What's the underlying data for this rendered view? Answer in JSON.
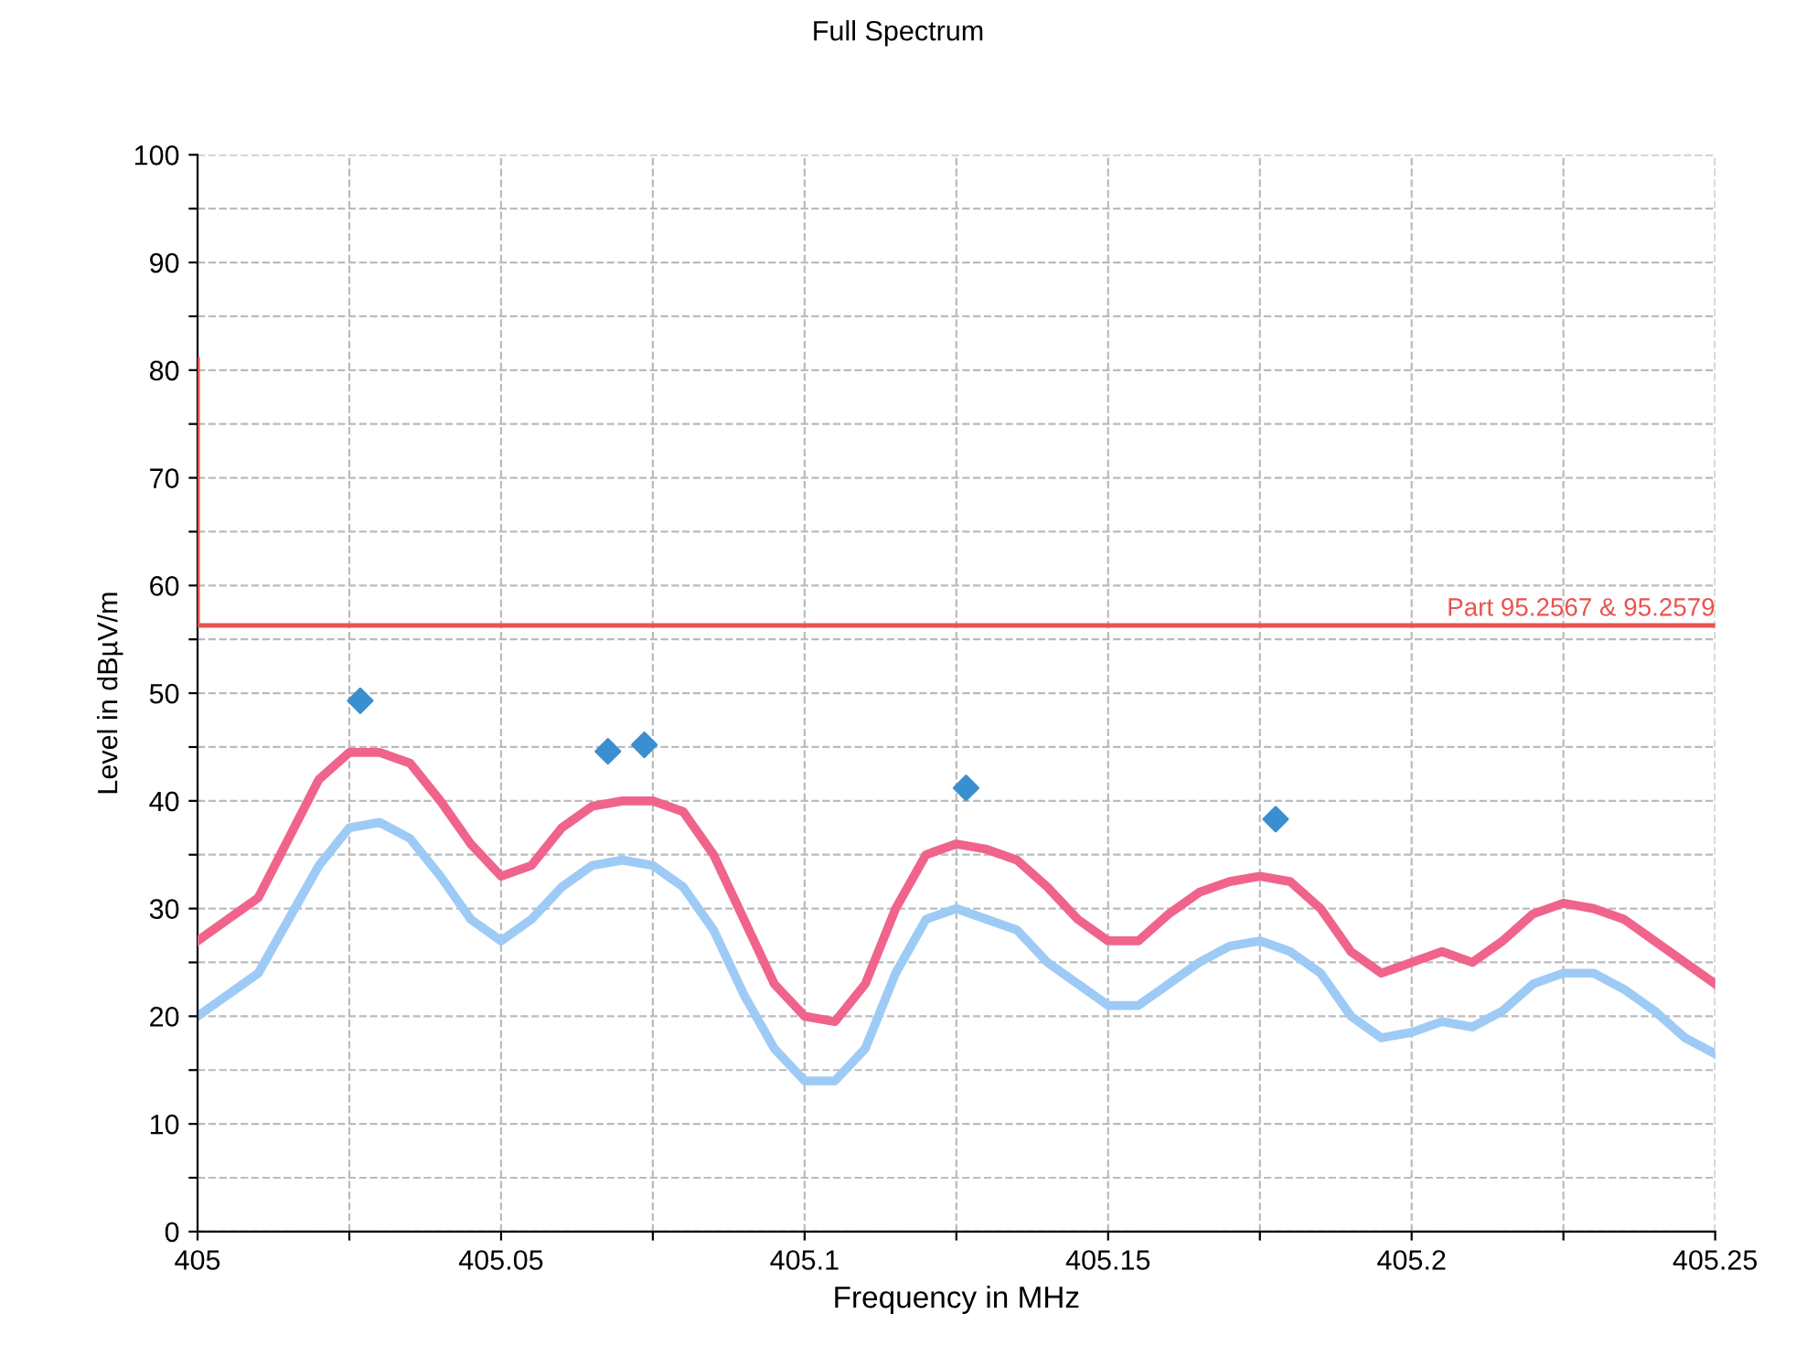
{
  "chart_data": {
    "type": "line",
    "title": "Full Spectrum",
    "xlabel": "Frequency in MHz",
    "ylabel": "Level in dBµV/m",
    "xlim": [
      405,
      405.25
    ],
    "ylim": [
      0,
      100
    ],
    "xticks": [
      405,
      {
        "value": 405.025,
        "label": null
      },
      405.05,
      {
        "value": 405.075,
        "label": null
      },
      405.1,
      {
        "value": 405.125,
        "label": null
      },
      405.15,
      {
        "value": 405.175,
        "label": null
      },
      405.2,
      {
        "value": 405.225,
        "label": null
      },
      405.25
    ],
    "yticks": [
      0,
      {
        "value": 5,
        "label": null
      },
      10,
      {
        "value": 15,
        "label": null
      },
      20,
      {
        "value": 25,
        "label": null
      },
      30,
      {
        "value": 35,
        "label": null
      },
      40,
      {
        "value": 45,
        "label": null
      },
      50,
      {
        "value": 55,
        "label": null
      },
      60,
      {
        "value": 65,
        "label": null
      },
      70,
      {
        "value": 75,
        "label": null
      },
      80,
      {
        "value": 85,
        "label": null
      },
      90,
      {
        "value": 95,
        "label": null
      },
      100
    ],
    "grid": true,
    "line_style": "solid",
    "x": [
      405,
      405.01,
      405.02,
      405.025,
      405.03,
      405.035,
      405.04,
      405.045,
      405.05,
      405.055,
      405.06,
      405.065,
      405.07,
      405.075,
      405.08,
      405.085,
      405.09,
      405.095,
      405.1,
      405.105,
      405.11,
      405.115,
      405.12,
      405.125,
      405.13,
      405.135,
      405.14,
      405.145,
      405.15,
      405.155,
      405.16,
      405.165,
      405.17,
      405.175,
      405.18,
      405.185,
      405.19,
      405.195,
      405.2,
      405.205,
      405.21,
      405.215,
      405.22,
      405.225,
      405.23,
      405.235,
      405.24,
      405.245,
      405.25
    ],
    "series": [
      {
        "color": "#9ecbf5",
        "values": [
          20,
          24,
          34,
          37.5,
          38,
          36.5,
          33,
          29,
          27,
          29,
          32,
          34,
          34.5,
          34,
          32,
          28,
          22,
          17,
          14,
          14,
          17,
          24,
          29,
          30,
          29,
          28,
          25,
          23,
          21,
          21,
          23,
          25,
          26.5,
          27,
          26,
          24,
          20,
          18,
          18.5,
          19.5,
          19,
          20.5,
          23,
          24,
          24,
          22.5,
          20.5,
          18,
          16.5
        ]
      },
      {
        "color": "#f0648c",
        "values": [
          27,
          31,
          42,
          44.5,
          44.5,
          43.5,
          40,
          36,
          33,
          34,
          37.5,
          39.5,
          40,
          40,
          39,
          35,
          29,
          23,
          20,
          19.5,
          23,
          30,
          35,
          36,
          35.5,
          34.5,
          32,
          29,
          27,
          27,
          29.5,
          31.5,
          32.5,
          33,
          32.5,
          30,
          26,
          24,
          25,
          26,
          25,
          27,
          29.5,
          30.5,
          30,
          29,
          27,
          25,
          23
        ]
      },
      {
        "name": "Part 95.2567 & 95.2579",
        "color": "#e8534f",
        "x": [
          405,
          405,
          405.25
        ],
        "values": [
          81,
          56.3,
          56.3
        ]
      },
      {
        "type": "scatter",
        "marker": "diamond",
        "color": "#3a8fd0",
        "x": [
          405.0268,
          405.0667,
          405.0676,
          405.0736,
          405.1266,
          405.1776
        ],
        "values": [
          49.3,
          null,
          44.6,
          45.2,
          41.2,
          38.3
        ]
      }
    ]
  }
}
